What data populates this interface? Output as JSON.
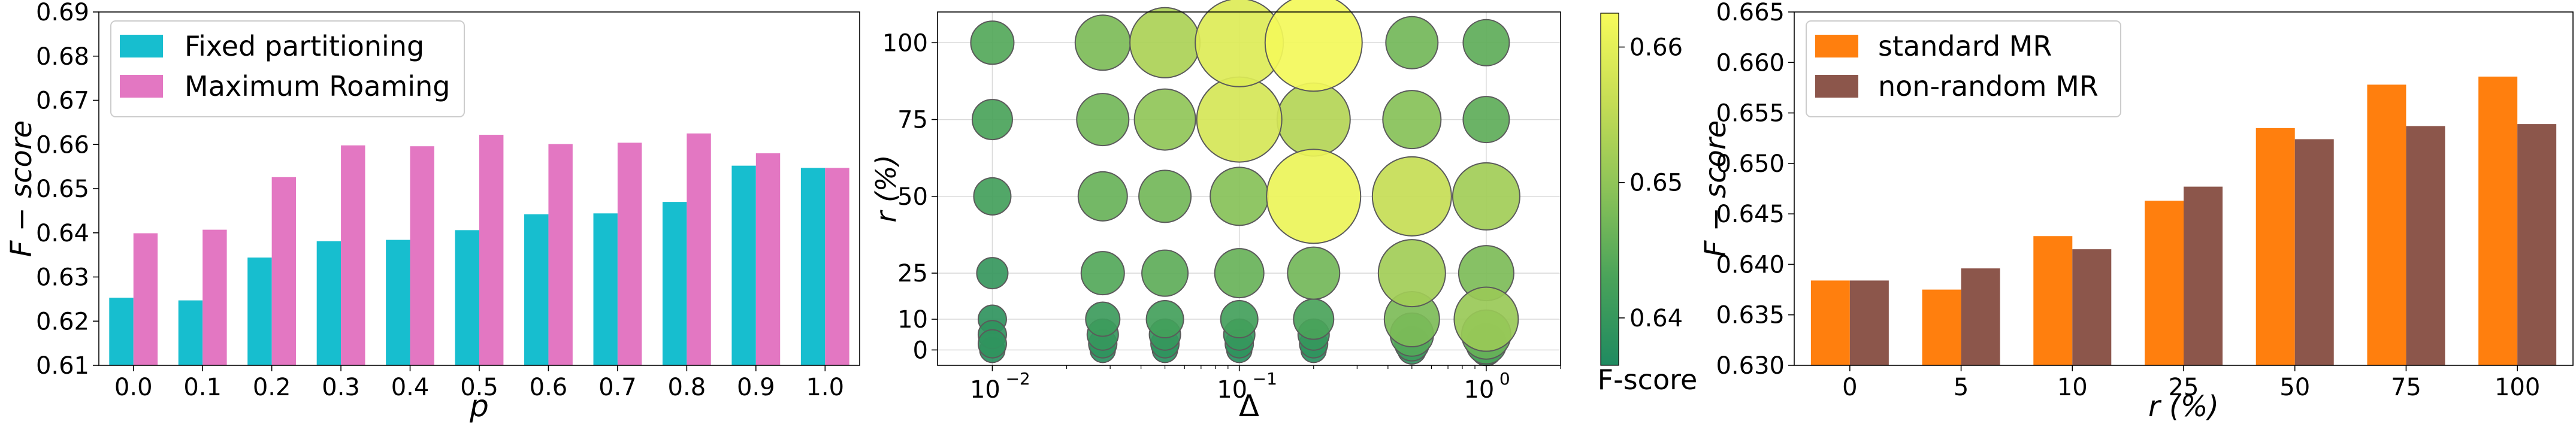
{
  "chart_data": [
    {
      "type": "bar",
      "categories": [
        "0.0",
        "0.1",
        "0.2",
        "0.3",
        "0.4",
        "0.5",
        "0.6",
        "0.7",
        "0.8",
        "0.9",
        "1.0"
      ],
      "series": [
        {
          "name": "Fixed partitioning",
          "color": "#17becf",
          "values": [
            0.6253,
            0.6247,
            0.6344,
            0.6381,
            0.6384,
            0.6406,
            0.6442,
            0.6444,
            0.647,
            0.6552,
            0.6547
          ]
        },
        {
          "name": "Maximum Roaming",
          "color": "#e377c2",
          "values": [
            0.6399,
            0.6407,
            0.6526,
            0.6598,
            0.6596,
            0.6622,
            0.6601,
            0.6604,
            0.6625,
            0.658,
            0.6547
          ]
        }
      ],
      "xlabel": "p",
      "ylabel": "F − score",
      "ylim": [
        0.61,
        0.69
      ],
      "yticks": [
        "0.61",
        "0.62",
        "0.63",
        "0.64",
        "0.65",
        "0.66",
        "0.67",
        "0.68",
        "0.69"
      ],
      "grid": false,
      "legend": "top-left"
    },
    {
      "type": "scatter",
      "xscale": "log",
      "xlabel": "Δ",
      "ylabel": "r  (%)",
      "xlim": [
        0.006,
        2.0
      ],
      "ylim": [
        -5,
        110
      ],
      "yticks": [
        "0",
        "10",
        "25",
        "50",
        "75",
        "100"
      ],
      "xticks": [
        {
          "value": 0.01,
          "base": "10",
          "exp": "−2"
        },
        {
          "value": 0.1,
          "base": "10",
          "exp": "−1"
        },
        {
          "value": 1,
          "base": "10",
          "exp": "0"
        }
      ],
      "grid": true,
      "colorbar": {
        "label": "F-score",
        "min": 0.6365,
        "max": 0.6625,
        "ticks": [
          "0.64",
          "0.65",
          "0.66"
        ],
        "colors": [
          "#1f8a60",
          "#4aa35a",
          "#8cc358",
          "#c6dd55",
          "#f7fb5a"
        ]
      },
      "points": [
        {
          "x": 0.01,
          "y": 100,
          "f": 0.644
        },
        {
          "x": 0.01,
          "y": 75,
          "f": 0.643
        },
        {
          "x": 0.01,
          "y": 50,
          "f": 0.642
        },
        {
          "x": 0.01,
          "y": 25,
          "f": 0.64
        },
        {
          "x": 0.01,
          "y": 10,
          "f": 0.639
        },
        {
          "x": 0.01,
          "y": 5,
          "f": 0.639
        },
        {
          "x": 0.01,
          "y": 2,
          "f": 0.639
        },
        {
          "x": 0.01,
          "y": 0,
          "f": 0.638
        },
        {
          "x": 0.028,
          "y": 100,
          "f": 0.648
        },
        {
          "x": 0.028,
          "y": 75,
          "f": 0.647
        },
        {
          "x": 0.028,
          "y": 50,
          "f": 0.646
        },
        {
          "x": 0.028,
          "y": 25,
          "f": 0.644
        },
        {
          "x": 0.028,
          "y": 10,
          "f": 0.641
        },
        {
          "x": 0.028,
          "y": 5,
          "f": 0.64
        },
        {
          "x": 0.028,
          "y": 2,
          "f": 0.639
        },
        {
          "x": 0.028,
          "y": 0,
          "f": 0.638
        },
        {
          "x": 0.05,
          "y": 100,
          "f": 0.653
        },
        {
          "x": 0.05,
          "y": 75,
          "f": 0.65
        },
        {
          "x": 0.05,
          "y": 50,
          "f": 0.647
        },
        {
          "x": 0.05,
          "y": 25,
          "f": 0.645
        },
        {
          "x": 0.05,
          "y": 10,
          "f": 0.642
        },
        {
          "x": 0.05,
          "y": 5,
          "f": 0.64
        },
        {
          "x": 0.05,
          "y": 2,
          "f": 0.639
        },
        {
          "x": 0.05,
          "y": 0,
          "f": 0.638
        },
        {
          "x": 0.1,
          "y": 100,
          "f": 0.659
        },
        {
          "x": 0.1,
          "y": 75,
          "f": 0.658
        },
        {
          "x": 0.1,
          "y": 50,
          "f": 0.649
        },
        {
          "x": 0.1,
          "y": 25,
          "f": 0.646
        },
        {
          "x": 0.1,
          "y": 10,
          "f": 0.642
        },
        {
          "x": 0.1,
          "y": 5,
          "f": 0.64
        },
        {
          "x": 0.1,
          "y": 2,
          "f": 0.639
        },
        {
          "x": 0.1,
          "y": 0,
          "f": 0.638
        },
        {
          "x": 0.2,
          "y": 100,
          "f": 0.662
        },
        {
          "x": 0.2,
          "y": 75,
          "f": 0.654
        },
        {
          "x": 0.2,
          "y": 50,
          "f": 0.661
        },
        {
          "x": 0.2,
          "y": 25,
          "f": 0.647
        },
        {
          "x": 0.2,
          "y": 10,
          "f": 0.643
        },
        {
          "x": 0.2,
          "y": 5,
          "f": 0.64
        },
        {
          "x": 0.2,
          "y": 2,
          "f": 0.639
        },
        {
          "x": 0.2,
          "y": 0,
          "f": 0.638
        },
        {
          "x": 0.5,
          "y": 100,
          "f": 0.647
        },
        {
          "x": 0.5,
          "y": 75,
          "f": 0.649
        },
        {
          "x": 0.5,
          "y": 50,
          "f": 0.656
        },
        {
          "x": 0.5,
          "y": 25,
          "f": 0.652
        },
        {
          "x": 0.5,
          "y": 10,
          "f": 0.648
        },
        {
          "x": 0.5,
          "y": 5,
          "f": 0.644
        },
        {
          "x": 0.5,
          "y": 2,
          "f": 0.641
        },
        {
          "x": 0.5,
          "y": 0,
          "f": 0.639
        },
        {
          "x": 1.0,
          "y": 100,
          "f": 0.645
        },
        {
          "x": 1.0,
          "y": 75,
          "f": 0.645
        },
        {
          "x": 1.0,
          "y": 50,
          "f": 0.652
        },
        {
          "x": 1.0,
          "y": 25,
          "f": 0.648
        },
        {
          "x": 1.0,
          "y": 10,
          "f": 0.651
        },
        {
          "x": 1.0,
          "y": 5,
          "f": 0.646
        },
        {
          "x": 1.0,
          "y": 2,
          "f": 0.643
        },
        {
          "x": 1.0,
          "y": 0,
          "f": 0.64
        }
      ]
    },
    {
      "type": "bar",
      "categories": [
        "0",
        "5",
        "10",
        "25",
        "50",
        "75",
        "100"
      ],
      "series": [
        {
          "name": "standard MR",
          "color": "#ff7f0e",
          "values": [
            0.6384,
            0.6375,
            0.6428,
            0.6463,
            0.6535,
            0.6578,
            0.6586
          ]
        },
        {
          "name": "non-random MR",
          "color": "#8c564b",
          "values": [
            0.6384,
            0.6396,
            0.6415,
            0.6477,
            0.6524,
            0.6537,
            0.6539
          ]
        }
      ],
      "xlabel": "r  (%)",
      "ylabel": "F − score",
      "ylim": [
        0.63,
        0.665
      ],
      "yticks": [
        "0.630",
        "0.635",
        "0.640",
        "0.645",
        "0.650",
        "0.655",
        "0.660",
        "0.665"
      ],
      "grid": false,
      "legend": "top-left"
    }
  ]
}
